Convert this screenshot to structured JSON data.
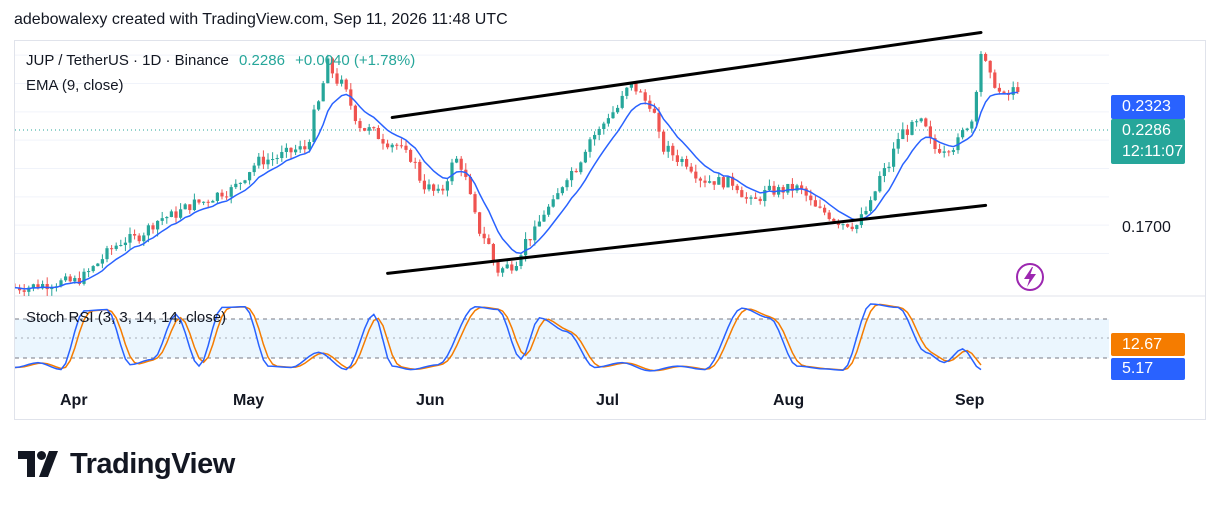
{
  "header": {
    "attribution": "adebowalexy created with TradingView.com, Sep 11, 2026 11:48 UTC"
  },
  "legend": {
    "symbol": "JUP / TetherUS · 1D · Binance",
    "price": "0.2286",
    "change": "+0.0040 (+1.78%)",
    "ema": "EMA (9, close)",
    "stoch": "Stoch RSI (3, 3, 14, 14, close)"
  },
  "price_axis": {
    "tag_ema": "0.2323",
    "tag_price": "0.2286",
    "tag_countdown": "12:11:07",
    "label_1700": "0.1700",
    "colors": {
      "ema_tag": "#2962ff",
      "price_tag": "#26a69a"
    }
  },
  "stoch_axis": {
    "tag_d": "12.67",
    "tag_k": "5.17",
    "colors": {
      "d_tag": "#f57c00",
      "k_tag": "#2962ff"
    }
  },
  "months": [
    "Apr",
    "May",
    "Jun",
    "Jul",
    "Aug",
    "Sep"
  ],
  "brand": {
    "name": "TradingView"
  },
  "colors": {
    "up": "#26a69a",
    "down": "#ef5350",
    "ema": "#2962ff",
    "stoch_k": "#2962ff",
    "stoch_d": "#f57c00",
    "channel": "#000000"
  },
  "chart_data": {
    "type": "candlestick",
    "symbol": "JUP / TetherUS",
    "timeframe": "1D",
    "exchange": "Binance",
    "x_tick_labels": [
      "Apr",
      "May",
      "Jun",
      "Jul",
      "Aug",
      "Sep"
    ],
    "y_tick_labels": [
      "0.2323",
      "0.2286",
      "0.1700"
    ],
    "series": [
      {
        "name": "EMA (9, close)",
        "last": 0.2323
      },
      {
        "name": "Stoch RSI %K",
        "last": 5.17
      },
      {
        "name": "Stoch RSI %D",
        "last": 12.67
      }
    ],
    "last_close": 0.2286,
    "change": 0.004,
    "change_pct": 1.78,
    "anchors": [
      [
        0,
        0.158
      ],
      [
        12,
        0.16
      ],
      [
        25,
        0.175
      ],
      [
        33,
        0.183
      ],
      [
        40,
        0.188
      ],
      [
        46,
        0.192
      ],
      [
        54,
        0.203
      ],
      [
        63,
        0.207
      ],
      [
        66,
        0.223
      ],
      [
        68,
        0.237
      ],
      [
        70,
        0.231
      ],
      [
        76,
        0.214
      ],
      [
        82,
        0.209
      ],
      [
        86,
        0.204
      ],
      [
        89,
        0.194
      ],
      [
        92,
        0.191
      ],
      [
        96,
        0.203
      ],
      [
        102,
        0.176
      ],
      [
        105,
        0.164
      ],
      [
        108,
        0.166
      ],
      [
        112,
        0.176
      ],
      [
        116,
        0.186
      ],
      [
        121,
        0.199
      ],
      [
        126,
        0.212
      ],
      [
        130,
        0.22
      ],
      [
        134,
        0.229
      ],
      [
        138,
        0.223
      ],
      [
        141,
        0.207
      ],
      [
        145,
        0.203
      ],
      [
        150,
        0.196
      ],
      [
        156,
        0.195
      ],
      [
        160,
        0.188
      ],
      [
        164,
        0.192
      ],
      [
        170,
        0.193
      ],
      [
        175,
        0.185
      ],
      [
        180,
        0.181
      ],
      [
        183,
        0.18
      ],
      [
        185,
        0.185
      ],
      [
        189,
        0.199
      ],
      [
        193,
        0.213
      ],
      [
        197,
        0.216
      ],
      [
        200,
        0.207
      ],
      [
        204,
        0.208
      ],
      [
        208,
        0.217
      ],
      [
        210,
        0.241
      ],
      [
        212,
        0.232
      ],
      [
        215,
        0.225
      ],
      [
        218,
        0.2286
      ]
    ],
    "stoch_anchors": [
      [
        0,
        8
      ],
      [
        5,
        15
      ],
      [
        10,
        5
      ],
      [
        15,
        90
      ],
      [
        20,
        92
      ],
      [
        25,
        12
      ],
      [
        30,
        20
      ],
      [
        35,
        85
      ],
      [
        40,
        10
      ],
      [
        45,
        95
      ],
      [
        50,
        96
      ],
      [
        55,
        10
      ],
      [
        60,
        8
      ],
      [
        66,
        30
      ],
      [
        72,
        5
      ],
      [
        78,
        85
      ],
      [
        82,
        10
      ],
      [
        86,
        5
      ],
      [
        92,
        12
      ],
      [
        100,
        96
      ],
      [
        105,
        92
      ],
      [
        110,
        20
      ],
      [
        114,
        80
      ],
      [
        120,
        60
      ],
      [
        126,
        8
      ],
      [
        132,
        15
      ],
      [
        138,
        3
      ],
      [
        144,
        10
      ],
      [
        150,
        5
      ],
      [
        158,
        94
      ],
      [
        164,
        80
      ],
      [
        170,
        10
      ],
      [
        176,
        6
      ],
      [
        180,
        4
      ],
      [
        186,
        100
      ],
      [
        192,
        95
      ],
      [
        198,
        30
      ],
      [
        202,
        15
      ],
      [
        206,
        35
      ],
      [
        210,
        5
      ]
    ],
    "channel": {
      "upper": [
        [
          82,
          0.218
        ],
        [
          210,
          0.248
        ]
      ],
      "lower": [
        [
          81,
          0.163
        ],
        [
          211,
          0.187
        ]
      ]
    },
    "y_scale": {
      "min": 0.155,
      "max": 0.245,
      "ticks": [
        "0.1700"
      ]
    },
    "grid": true,
    "legend_position": "top-left"
  }
}
